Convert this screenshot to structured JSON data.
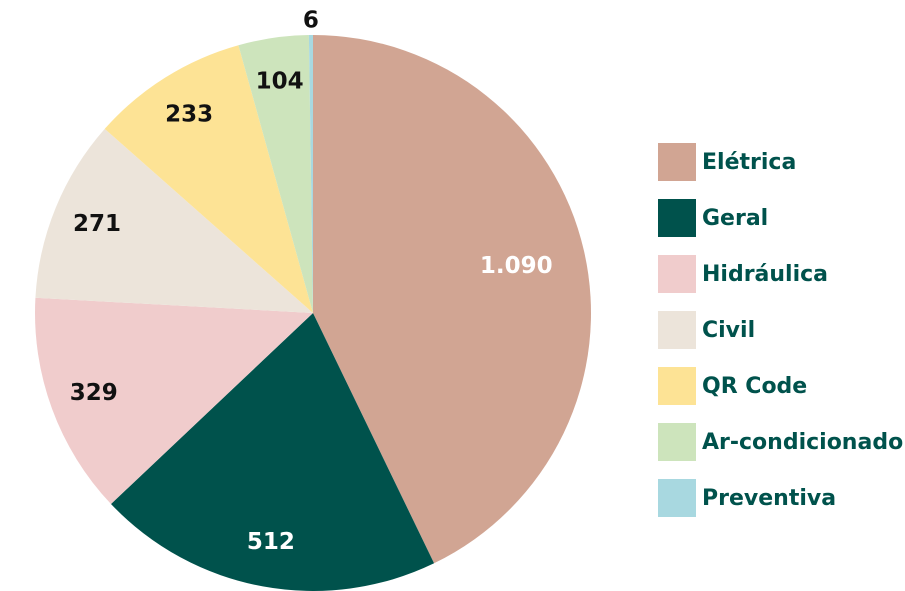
{
  "chart_data": {
    "type": "pie",
    "categories": [
      "Elétrica",
      "Geral",
      "Hidráulica",
      "Civil",
      "QR Code",
      "Ar-condicionado",
      "Preventiva"
    ],
    "values": [
      1090,
      512,
      329,
      271,
      233,
      104,
      6
    ],
    "value_labels": [
      "1.090",
      "512",
      "329",
      "271",
      "233",
      "104",
      "6"
    ],
    "colors": [
      "#d1a593",
      "#00524c",
      "#f0cccc",
      "#ece4da",
      "#fde395",
      "#cde4bc",
      "#a8d8e0"
    ]
  }
}
